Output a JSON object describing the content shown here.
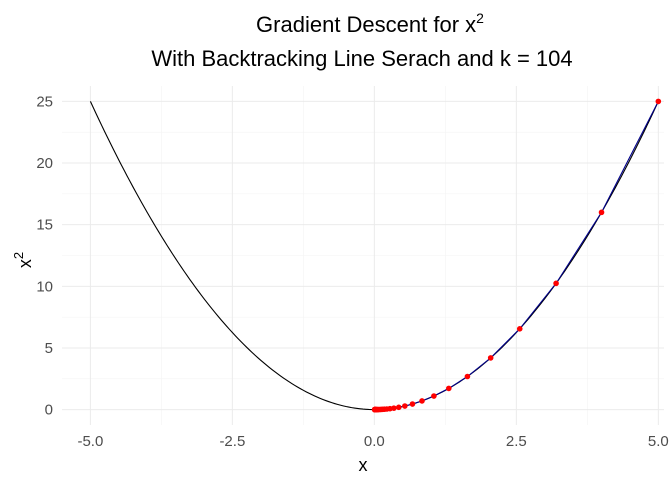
{
  "chart_data": {
    "type": "line",
    "title": {
      "line1_prefix": "Gradient Descent for x",
      "line1_superscript": "2",
      "line2": "With Backtracking Line Serach and k = 104"
    },
    "xlabel": "x",
    "ylabel": "x",
    "ylabel_superscript": "2",
    "xlim": [
      -5.5,
      5.1
    ],
    "ylim": [
      -1.25,
      26.25
    ],
    "x_ticks": [
      -5.0,
      -2.5,
      0.0,
      2.5,
      5.0
    ],
    "x_tick_labels": [
      "-5.0",
      "-2.5",
      "0.0",
      "2.5",
      "5.0"
    ],
    "y_ticks": [
      0,
      5,
      10,
      15,
      20,
      25
    ],
    "y_tick_labels": [
      "0",
      "5",
      "10",
      "15",
      "20",
      "25"
    ],
    "x_minor_ticks": [
      -3.75,
      -1.25,
      1.25,
      3.75
    ],
    "y_minor_ticks": [
      2.5,
      7.5,
      12.5,
      17.5,
      22.5
    ],
    "grid": true,
    "series": [
      {
        "kind": "curve",
        "function": "x^2",
        "x_range": [
          -5,
          5
        ],
        "color": "#000000"
      },
      {
        "kind": "path",
        "color": "#00008b",
        "x": [
          5.0,
          4.0,
          3.2,
          2.56,
          2.048,
          1.6384,
          1.31072,
          1.048576,
          0.838861,
          0.671089,
          0.536871,
          0.429497,
          0.343597,
          0.274878,
          0.219902,
          0.175922,
          0.140737,
          0.11259,
          0.090072,
          0.072058,
          0.057646,
          0.046117,
          0.036893,
          0.029515,
          0.023612,
          0.018889,
          0.015112,
          0.012089,
          0.009671,
          0.007737,
          0.00619,
          0.004952
        ],
        "y": [
          25.0,
          16.0,
          10.24,
          6.5536,
          4.194304,
          2.684355,
          1.717987,
          1.099512,
          0.703687,
          0.45036,
          0.28823,
          0.184467,
          0.118059,
          0.075558,
          0.048357,
          0.030949,
          0.019807,
          0.012677,
          0.008113,
          0.005192,
          0.003323,
          0.002127,
          0.001361,
          0.000871,
          0.000558,
          0.000357,
          0.000228,
          0.000146,
          9.4e-05,
          6e-05,
          3.8e-05,
          2.5e-05
        ]
      },
      {
        "kind": "points",
        "color": "#ff0000",
        "x": [
          5.0,
          4.0,
          3.2,
          2.56,
          2.048,
          1.6384,
          1.31072,
          1.048576,
          0.838861,
          0.671089,
          0.536871,
          0.429497,
          0.343597,
          0.274878,
          0.219902,
          0.175922,
          0.140737,
          0.11259,
          0.090072,
          0.072058,
          0.057646,
          0.046117,
          0.036893,
          0.029515,
          0.023612,
          0.018889,
          0.015112,
          0.012089,
          0.009671,
          0.007737,
          0.00619,
          0.004952
        ],
        "y": [
          25.0,
          16.0,
          10.24,
          6.5536,
          4.194304,
          2.684355,
          1.717987,
          1.099512,
          0.703687,
          0.45036,
          0.28823,
          0.184467,
          0.118059,
          0.075558,
          0.048357,
          0.030949,
          0.019807,
          0.012677,
          0.008113,
          0.005192,
          0.003323,
          0.002127,
          0.001361,
          0.000871,
          0.000558,
          0.000357,
          0.000228,
          0.000146,
          9.4e-05,
          6e-05,
          3.8e-05,
          2.5e-05
        ]
      }
    ]
  }
}
